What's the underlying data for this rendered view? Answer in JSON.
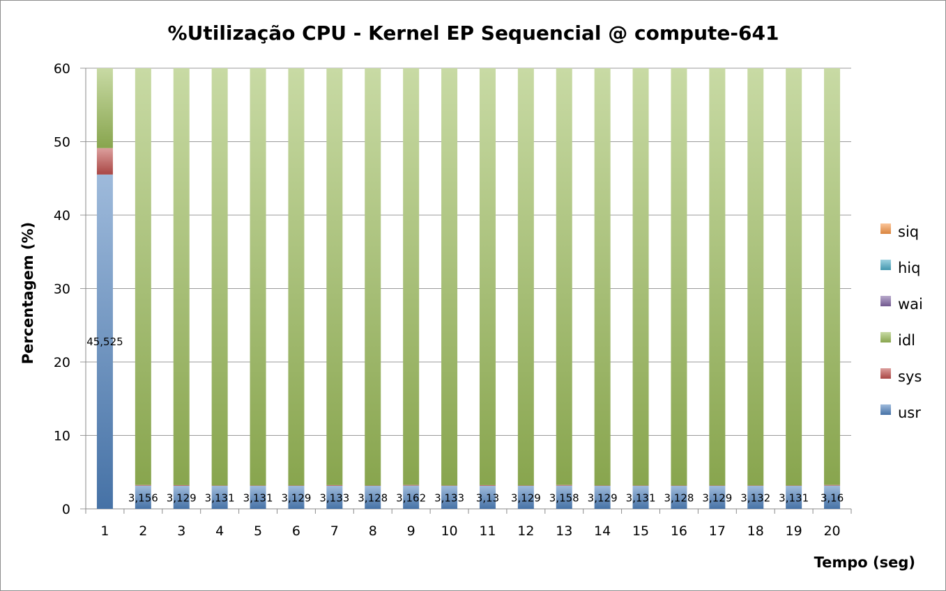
{
  "chart_data": {
    "type": "bar",
    "stacked": true,
    "title": "%Utilização CPU - Kernel EP Sequencial @ compute-641",
    "xlabel": "Tempo (seg)",
    "ylabel": "Percentagem (%)",
    "ylim": [
      0,
      60
    ],
    "yticks": [
      "0",
      "10",
      "20",
      "30",
      "40",
      "50",
      "60"
    ],
    "grid": true,
    "legend_position": "right",
    "categories": [
      "1",
      "2",
      "3",
      "4",
      "5",
      "6",
      "7",
      "8",
      "9",
      "10",
      "11",
      "12",
      "13",
      "14",
      "15",
      "16",
      "17",
      "18",
      "19",
      "20"
    ],
    "series": [
      {
        "name": "usr",
        "color": "#4f81bd",
        "values": [
          45.525,
          3.156,
          3.129,
          3.131,
          3.131,
          3.129,
          3.133,
          3.128,
          3.162,
          3.133,
          3.13,
          3.129,
          3.158,
          3.129,
          3.131,
          3.128,
          3.129,
          3.132,
          3.131,
          3.16
        ]
      },
      {
        "name": "sys",
        "color": "#c0504d",
        "values": [
          3.6,
          0.1,
          0.1,
          0.05,
          0.05,
          0.05,
          0.1,
          0.05,
          0.1,
          0.05,
          0.1,
          0.05,
          0.1,
          0.05,
          0.05,
          0.05,
          0.05,
          0.05,
          0.05,
          0.1
        ]
      },
      {
        "name": "idl",
        "color": "#9bbb59",
        "values": [
          10.875,
          56.744,
          56.771,
          56.819,
          56.819,
          56.821,
          56.767,
          56.822,
          56.738,
          56.817,
          56.77,
          56.821,
          56.742,
          56.821,
          56.819,
          56.822,
          56.821,
          56.818,
          56.819,
          56.74
        ]
      },
      {
        "name": "wai",
        "color": "#8064a2",
        "values": [
          0,
          0,
          0,
          0,
          0,
          0,
          0,
          0,
          0,
          0,
          0,
          0,
          0,
          0,
          0,
          0,
          0,
          0,
          0,
          0
        ]
      },
      {
        "name": "hiq",
        "color": "#4bacc6",
        "values": [
          0,
          0,
          0,
          0,
          0,
          0,
          0,
          0,
          0,
          0,
          0,
          0,
          0,
          0,
          0,
          0,
          0,
          0,
          0,
          0
        ]
      },
      {
        "name": "siq",
        "color": "#f79646",
        "values": [
          0,
          0,
          0,
          0,
          0,
          0,
          0,
          0,
          0,
          0,
          0,
          0,
          0,
          0,
          0,
          0,
          0,
          0,
          0,
          0
        ]
      }
    ],
    "data_labels": [
      "45,525",
      "3,156",
      "3,129",
      "3,131",
      "3,131",
      "3,129",
      "3,133",
      "3,128",
      "3,162",
      "3,133",
      "3,13",
      "3,129",
      "3,158",
      "3,129",
      "3,131",
      "3,128",
      "3,129",
      "3,132",
      "3,131",
      "3,16"
    ],
    "legend_order": [
      "siq",
      "hiq",
      "wai",
      "idl",
      "sys",
      "usr"
    ]
  }
}
